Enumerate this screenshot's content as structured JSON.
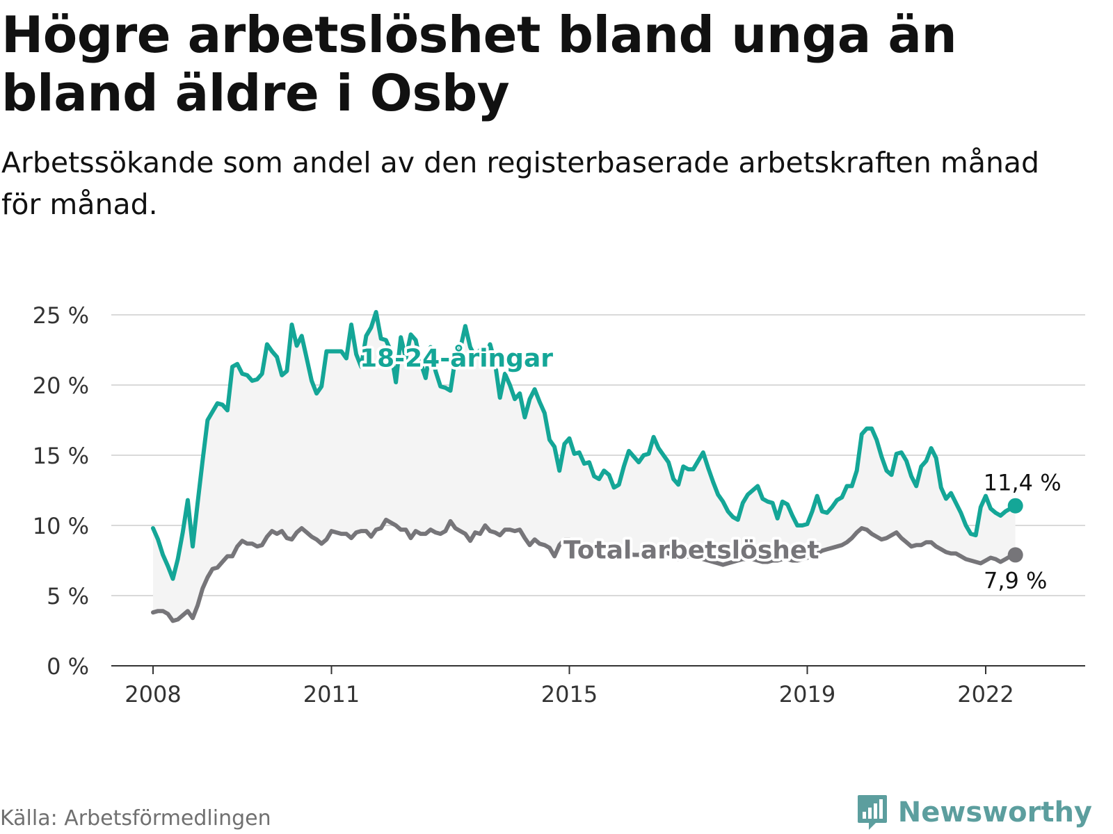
{
  "title": "Högre arbetslöshet bland unga än bland äldre i Osby",
  "subtitle": "Arbetssökande som andel av den registerbaserade arbetskraften månad för månad.",
  "source": "Källa: Arbetsförmedlingen",
  "brand": "Newsworthy",
  "colors": {
    "youth": "#14a697",
    "total": "#767579",
    "band": "#f4f4f4",
    "grid": "#d9d9d9",
    "axis": "#333333",
    "brand": "#5c9e9e"
  },
  "chart_data": {
    "type": "line",
    "x_unit": "year (decimal, monthly)",
    "start": 2008.0,
    "step": 0.08333,
    "xlim": [
      2008,
      2023.2
    ],
    "ylim": [
      0,
      25
    ],
    "y_ticks": [
      0,
      5,
      10,
      15,
      20,
      25
    ],
    "y_tick_labels": [
      "0 %",
      "5 %",
      "10 %",
      "15 %",
      "20 %",
      "25 %"
    ],
    "x_ticks": [
      2008,
      2011,
      2015,
      2019,
      2022
    ],
    "x_tick_labels": [
      "2008",
      "2011",
      "2015",
      "2019",
      "2022"
    ],
    "grid": "horizontal",
    "series": [
      {
        "name": "18-24-åringar",
        "color": "#14a697",
        "end_label": "11,4 %",
        "values": [
          9.8,
          9.0,
          7.9,
          7.1,
          6.2,
          7.6,
          9.5,
          11.8,
          8.5,
          11.6,
          14.6,
          17.5,
          18.1,
          18.7,
          18.6,
          18.2,
          21.3,
          21.5,
          20.8,
          20.7,
          20.3,
          20.4,
          20.8,
          22.9,
          22.4,
          22.0,
          20.7,
          21.0,
          24.3,
          22.8,
          23.5,
          21.9,
          20.3,
          19.4,
          19.9,
          22.4,
          22.4,
          22.4,
          22.4,
          21.9,
          24.3,
          22.2,
          21.3,
          23.5,
          24.1,
          25.2,
          23.3,
          23.2,
          22.4,
          20.2,
          23.4,
          21.9,
          23.6,
          23.2,
          21.6,
          20.5,
          22.7,
          21.0,
          19.9,
          19.8,
          19.6,
          21.9,
          22.6,
          24.2,
          22.7,
          22.0,
          22.5,
          22.0,
          22.9,
          21.6,
          19.1,
          20.8,
          20.0,
          19.0,
          19.4,
          17.7,
          19.0,
          19.7,
          18.8,
          18.0,
          16.1,
          15.6,
          13.9,
          15.8,
          16.2,
          15.1,
          15.2,
          14.4,
          14.5,
          13.5,
          13.3,
          13.9,
          13.6,
          12.7,
          12.9,
          14.2,
          15.3,
          14.9,
          14.5,
          15.0,
          15.1,
          16.3,
          15.5,
          15.0,
          14.5,
          13.3,
          12.9,
          14.2,
          14.0,
          14.0,
          14.6,
          15.2,
          14.1,
          13.1,
          12.2,
          11.7,
          11.0,
          10.6,
          10.4,
          11.6,
          12.2,
          12.5,
          12.8,
          11.9,
          11.7,
          11.6,
          10.5,
          11.7,
          11.5,
          10.7,
          10.0,
          10.0,
          10.1,
          11.0,
          12.1,
          11.0,
          10.9,
          11.3,
          11.8,
          12.0,
          12.8,
          12.8,
          13.9,
          16.5,
          16.9,
          16.9,
          16.1,
          14.9,
          13.9,
          13.6,
          15.1,
          15.2,
          14.6,
          13.5,
          12.8,
          14.2,
          14.6,
          15.5,
          14.8,
          12.7,
          11.9,
          12.3,
          11.6,
          10.9,
          10.0,
          9.4,
          9.3,
          11.3,
          12.1,
          11.2,
          10.9,
          10.7,
          11.0,
          11.2,
          11.4
        ]
      },
      {
        "name": "Total arbetslöshet",
        "color": "#767579",
        "end_label": "7,9 %",
        "values": [
          3.8,
          3.9,
          3.9,
          3.7,
          3.2,
          3.3,
          3.6,
          3.9,
          3.4,
          4.3,
          5.5,
          6.3,
          6.9,
          7.0,
          7.4,
          7.8,
          7.8,
          8.5,
          8.9,
          8.7,
          8.7,
          8.5,
          8.6,
          9.2,
          9.6,
          9.4,
          9.6,
          9.1,
          9.0,
          9.5,
          9.8,
          9.5,
          9.2,
          9.0,
          8.7,
          9.0,
          9.6,
          9.5,
          9.4,
          9.4,
          9.1,
          9.5,
          9.6,
          9.6,
          9.2,
          9.7,
          9.8,
          10.4,
          10.2,
          10.0,
          9.7,
          9.7,
          9.1,
          9.6,
          9.4,
          9.4,
          9.7,
          9.5,
          9.4,
          9.6,
          10.3,
          9.8,
          9.6,
          9.4,
          8.9,
          9.5,
          9.4,
          10.0,
          9.6,
          9.5,
          9.3,
          9.7,
          9.7,
          9.6,
          9.7,
          9.1,
          8.6,
          9.0,
          8.7,
          8.6,
          8.4,
          7.8,
          8.6,
          9.0,
          9.0,
          8.9,
          8.5,
          8.3,
          8.2,
          8.2,
          8.5,
          8.5,
          8.3,
          8.2,
          8.1,
          8.1,
          8.0,
          7.9,
          7.9,
          8.1,
          8.1,
          8.3,
          8.4,
          8.2,
          8.0,
          7.9,
          7.6,
          7.7,
          7.8,
          7.8,
          7.7,
          7.6,
          7.5,
          7.4,
          7.3,
          7.2,
          7.3,
          7.4,
          7.5,
          7.6,
          7.6,
          7.6,
          7.5,
          7.4,
          7.4,
          7.5,
          7.5,
          7.6,
          7.6,
          7.5,
          7.5,
          7.6,
          7.7,
          7.8,
          8.0,
          8.2,
          8.3,
          8.4,
          8.5,
          8.6,
          8.8,
          9.1,
          9.5,
          9.8,
          9.7,
          9.4,
          9.2,
          9.0,
          9.1,
          9.3,
          9.5,
          9.1,
          8.8,
          8.5,
          8.6,
          8.6,
          8.8,
          8.8,
          8.5,
          8.3,
          8.1,
          8.0,
          8.0,
          7.8,
          7.6,
          7.5,
          7.4,
          7.3,
          7.5,
          7.7,
          7.6,
          7.4,
          7.6,
          7.8,
          7.9
        ]
      }
    ]
  }
}
